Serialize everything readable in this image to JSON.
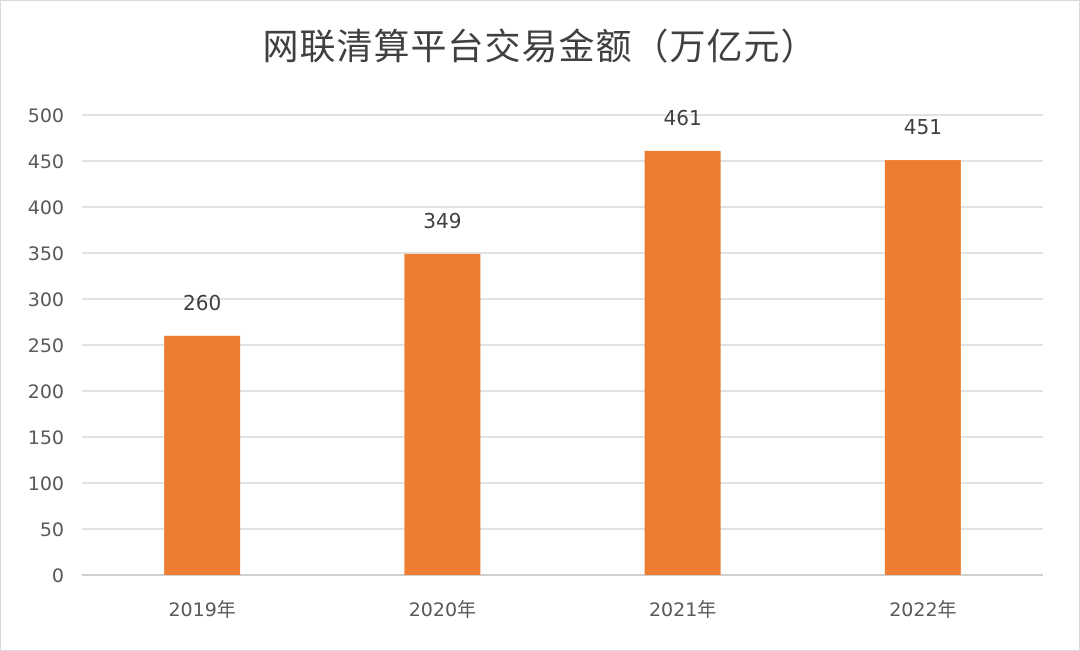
{
  "chart_data": {
    "type": "bar",
    "title": "网联清算平台交易金额（万亿元）",
    "categories": [
      "2019年",
      "2020年",
      "2021年",
      "2022年"
    ],
    "values": [
      260,
      349,
      461,
      451
    ],
    "data_labels": [
      "260",
      "349",
      "461",
      "451"
    ],
    "ylim": [
      0,
      500
    ],
    "yticks": [
      0,
      50,
      100,
      150,
      200,
      250,
      300,
      350,
      400,
      450,
      500
    ],
    "xlabel": "",
    "ylabel": "",
    "grid": true,
    "legend": "none",
    "bar_color": "#ED7D31"
  }
}
